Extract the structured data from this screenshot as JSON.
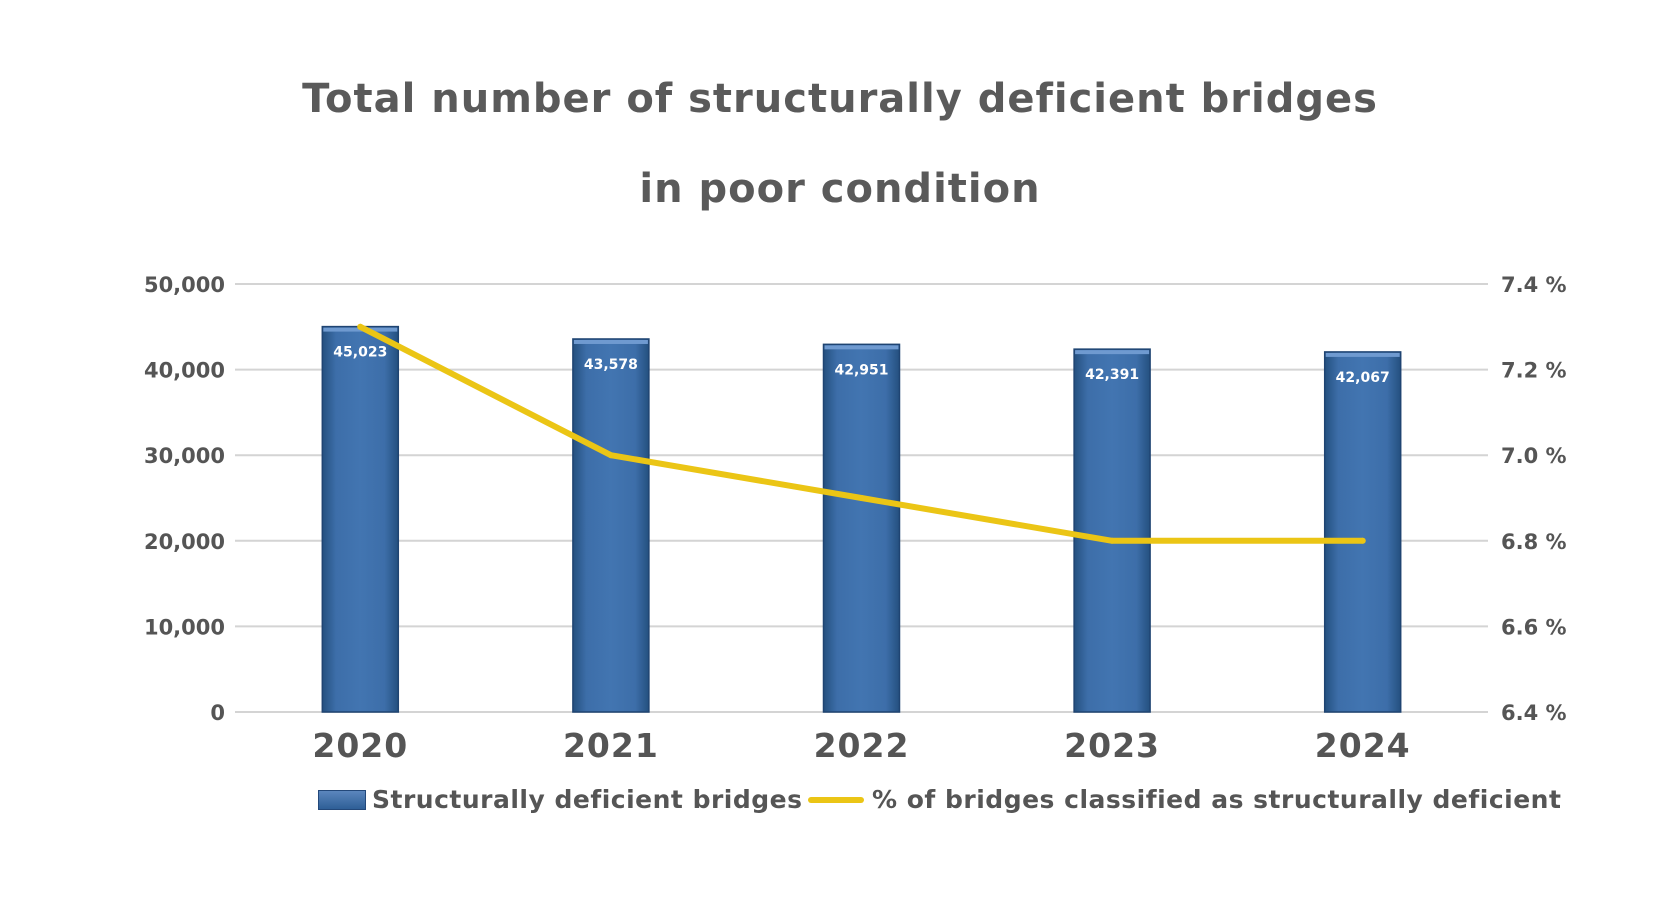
{
  "chart_data": {
    "type": "bar+line",
    "title_line1": "Total number of structurally deficient bridges",
    "title_line2": "in poor condition",
    "categories": [
      "2020",
      "2021",
      "2022",
      "2023",
      "2024"
    ],
    "series": [
      {
        "name": "Structurally deficient bridges",
        "type": "bar",
        "axis": "left",
        "values": [
          45023,
          43578,
          42951,
          42391,
          42067
        ],
        "labels": [
          "45,023",
          "43,578",
          "42,951",
          "42,391",
          "42,067"
        ],
        "color": "#3a6aa6"
      },
      {
        "name": "% of bridges classified as structurally deficient",
        "type": "line",
        "axis": "right",
        "values": [
          7.3,
          7.0,
          6.9,
          6.8,
          6.8
        ],
        "color": "#ebc515"
      }
    ],
    "left_axis": {
      "ylim": [
        0,
        50000
      ],
      "ticks": [
        0,
        10000,
        20000,
        30000,
        40000,
        50000
      ],
      "tick_labels": [
        "0",
        "10,000",
        "20,000",
        "30,000",
        "40,000",
        "50,000"
      ]
    },
    "right_axis": {
      "ylim": [
        6.4,
        7.4
      ],
      "ticks": [
        6.4,
        6.6,
        6.8,
        7.0,
        7.2,
        7.4
      ],
      "tick_labels": [
        "6.4 %",
        "6.6 %",
        "6.8 %",
        "7.0 %",
        "7.2 %",
        "7.4 %"
      ]
    },
    "grid": true,
    "legend_position": "bottom"
  }
}
